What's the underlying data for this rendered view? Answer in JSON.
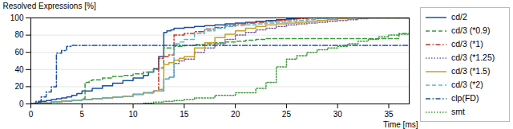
{
  "chart_data": {
    "type": "step",
    "xlabel": "Time [ms]",
    "ylabel": "Resolved Expressions [%]",
    "xlim": [
      0,
      37
    ],
    "ylim": [
      0,
      100
    ],
    "xticks": [
      0,
      5,
      10,
      15,
      20,
      25,
      30,
      35
    ],
    "yticks": [
      0,
      20,
      40,
      60,
      80,
      100
    ],
    "grid": "y",
    "legend": "right",
    "series": [
      {
        "name": "cd/2",
        "color": "#1a4f9f",
        "line_style": "solid",
        "x": [
          0,
          0.3,
          0.7,
          1.0,
          1.5,
          2.0,
          2.5,
          3.0,
          3.5,
          4.0,
          4.5,
          5.0,
          6.0,
          7.0,
          8.0,
          9.0,
          10.0,
          11.0,
          11.5,
          12.0,
          12.5,
          13.0,
          13.3,
          13.7,
          14.0,
          15.0,
          16.0,
          17.0,
          18.0,
          19.0,
          20.0,
          21.0,
          22.0,
          23.0,
          24.0,
          25.0,
          26.0,
          27.0,
          28.0,
          29.0,
          30.0,
          31.0,
          32.0,
          33.0,
          34.0,
          35.0,
          36.0,
          37.0
        ],
        "values": [
          0,
          1,
          2,
          3,
          4,
          5,
          6,
          7,
          8,
          10,
          12,
          15,
          18,
          21,
          24,
          27,
          30,
          33,
          37,
          41,
          55,
          83,
          85,
          86,
          88,
          89,
          90,
          91,
          92,
          93,
          94,
          95,
          96,
          97,
          98,
          99,
          100,
          100,
          100,
          100,
          100,
          100,
          100,
          100,
          100,
          100,
          100,
          100
        ]
      },
      {
        "name": "cd/3 (*0.9)",
        "color": "#3a9a3a",
        "line_style": "dashed",
        "x": [
          0,
          1.0,
          2.0,
          3.0,
          4.0,
          5.0,
          5.3,
          5.7,
          6.0,
          7.0,
          8.0,
          9.0,
          10.0,
          11.0,
          12.0,
          12.5,
          13.0,
          14.0,
          15.0,
          16.0,
          17.0,
          18.0,
          19.0,
          20.0,
          21.0,
          22.0,
          23.0,
          24.0,
          25.0,
          26.0,
          27.0,
          28.0,
          29.0,
          30.0,
          31.0,
          32.0,
          33.0,
          34.0,
          35.0,
          36.0,
          37.0
        ],
        "values": [
          0,
          1,
          2,
          3,
          4,
          6,
          25,
          27,
          28,
          30,
          32,
          33,
          35,
          37,
          40,
          42,
          65,
          67,
          68,
          69,
          70,
          71,
          72,
          73,
          74,
          75,
          76,
          76,
          76,
          76,
          76,
          76,
          76,
          76,
          76,
          76,
          76,
          76,
          76,
          82,
          82
        ]
      },
      {
        "name": "cd/3 (*1)",
        "color": "#c0392b",
        "line_style": "dashdot",
        "x": [
          0,
          1.0,
          2.0,
          3.0,
          4.0,
          5.0,
          6.0,
          7.0,
          8.0,
          9.0,
          10.0,
          11.0,
          12.0,
          12.5,
          13.0,
          13.5,
          14.0,
          15.0,
          16.0,
          17.0,
          18.0,
          19.0,
          20.0,
          21.0,
          22.0,
          23.0,
          24.0,
          25.0,
          26.0,
          27.0,
          28.0,
          29.0,
          30.0,
          31.0,
          32.0,
          33.0,
          34.0,
          35.0,
          36.0,
          37.0
        ],
        "values": [
          0,
          1,
          2,
          3,
          4,
          5,
          6,
          7,
          8,
          9,
          11,
          13,
          15,
          53,
          55,
          57,
          80,
          82,
          84,
          87,
          89,
          91,
          93,
          94,
          95,
          96,
          97,
          98,
          99,
          100,
          100,
          100,
          100,
          100,
          100,
          100,
          100,
          100,
          100,
          100
        ]
      },
      {
        "name": "cd/3 (*1.25)",
        "color": "#7b5ea7",
        "line_style": "dotted",
        "x": [
          0,
          1.0,
          2.0,
          3.0,
          4.0,
          5.0,
          6.0,
          7.0,
          8.0,
          9.0,
          10.0,
          11.0,
          12.0,
          13.0,
          13.5,
          14.0,
          14.5,
          15.0,
          16.0,
          17.0,
          18.0,
          19.0,
          20.0,
          21.0,
          22.0,
          23.0,
          24.0,
          25.0,
          26.0,
          27.0,
          28.0,
          29.0,
          30.0,
          31.0,
          32.0,
          33.0,
          34.0,
          35.0,
          36.0,
          37.0
        ],
        "values": [
          0,
          1,
          2,
          3,
          4,
          5,
          6,
          7,
          8,
          9,
          11,
          13,
          15,
          29,
          31,
          47,
          50,
          52,
          60,
          65,
          70,
          75,
          80,
          83,
          86,
          88,
          90,
          92,
          93,
          94,
          95,
          96,
          97,
          98,
          99,
          100,
          100,
          100,
          100,
          100
        ]
      },
      {
        "name": "cd/3 (*1.5)",
        "color": "#c8a020",
        "line_style": "solid",
        "x": [
          0,
          1.0,
          2.0,
          3.0,
          4.0,
          5.0,
          6.0,
          7.0,
          8.0,
          9.0,
          10.0,
          11.0,
          12.0,
          12.5,
          13.0,
          13.5,
          14.0,
          14.5,
          15.0,
          16.0,
          17.0,
          18.0,
          19.0,
          20.0,
          21.0,
          22.0,
          23.0,
          24.0,
          25.0,
          26.0,
          27.0,
          28.0,
          29.0,
          30.0,
          31.0,
          32.0,
          33.0,
          34.0,
          35.0,
          36.0,
          37.0
        ],
        "values": [
          0,
          1,
          2,
          3,
          4,
          5,
          6,
          7,
          8,
          9,
          11,
          13,
          15,
          17,
          46,
          48,
          51,
          53,
          55,
          65,
          71,
          77,
          81,
          85,
          88,
          90,
          92,
          93,
          94,
          95,
          96,
          97,
          98,
          99,
          100,
          100,
          100,
          100,
          100,
          100,
          100
        ]
      },
      {
        "name": "cd/3 (*2)",
        "color": "#5bb8cc",
        "line_style": "dashed",
        "x": [
          0,
          1.0,
          2.0,
          3.0,
          4.0,
          5.0,
          6.0,
          7.0,
          8.0,
          9.0,
          10.0,
          11.0,
          12.0,
          13.0,
          13.5,
          14.0,
          14.5,
          15.0,
          16.0,
          17.0,
          18.0,
          19.0,
          20.0,
          21.0,
          22.0,
          23.0,
          24.0,
          25.0,
          26.0,
          27.0,
          28.0,
          29.0,
          30.0,
          31.0,
          32.0,
          33.0,
          34.0,
          35.0,
          36.0,
          37.0
        ],
        "values": [
          0,
          1,
          2,
          3,
          4,
          5,
          6,
          7,
          8,
          9,
          11,
          13,
          15,
          29,
          31,
          70,
          72,
          75,
          82,
          85,
          88,
          90,
          91,
          92,
          93,
          94,
          95,
          96,
          97,
          98,
          99,
          100,
          100,
          100,
          100,
          100,
          100,
          100,
          100,
          100
        ]
      },
      {
        "name": "clp(FD)",
        "color": "#1a4f9f",
        "line_style": "dashdot",
        "x": [
          0,
          0.5,
          1.0,
          1.5,
          2.0,
          2.5,
          3.0,
          3.5,
          4.0,
          4.5,
          5.0,
          5.5,
          6.0,
          37.0
        ],
        "values": [
          0,
          3,
          8,
          14,
          20,
          59,
          62,
          67,
          68,
          68,
          68,
          68,
          68,
          68
        ]
      },
      {
        "name": "smt",
        "color": "#3a9a3a",
        "line_style": "dotted",
        "x": [
          0,
          10.0,
          11.0,
          12.0,
          13.0,
          14.0,
          15.0,
          16.0,
          18.0,
          20.0,
          22.0,
          23.0,
          24.0,
          25.0,
          26.0,
          27.0,
          28.0,
          29.0,
          30.0,
          31.0,
          32.0,
          33.0,
          34.0,
          35.0,
          36.0,
          37.0
        ],
        "values": [
          0,
          0,
          1,
          2,
          3,
          4,
          5,
          7,
          10,
          13,
          18,
          25,
          43,
          52,
          56,
          60,
          63,
          65,
          67,
          70,
          73,
          75,
          78,
          80,
          81,
          82
        ]
      }
    ]
  }
}
